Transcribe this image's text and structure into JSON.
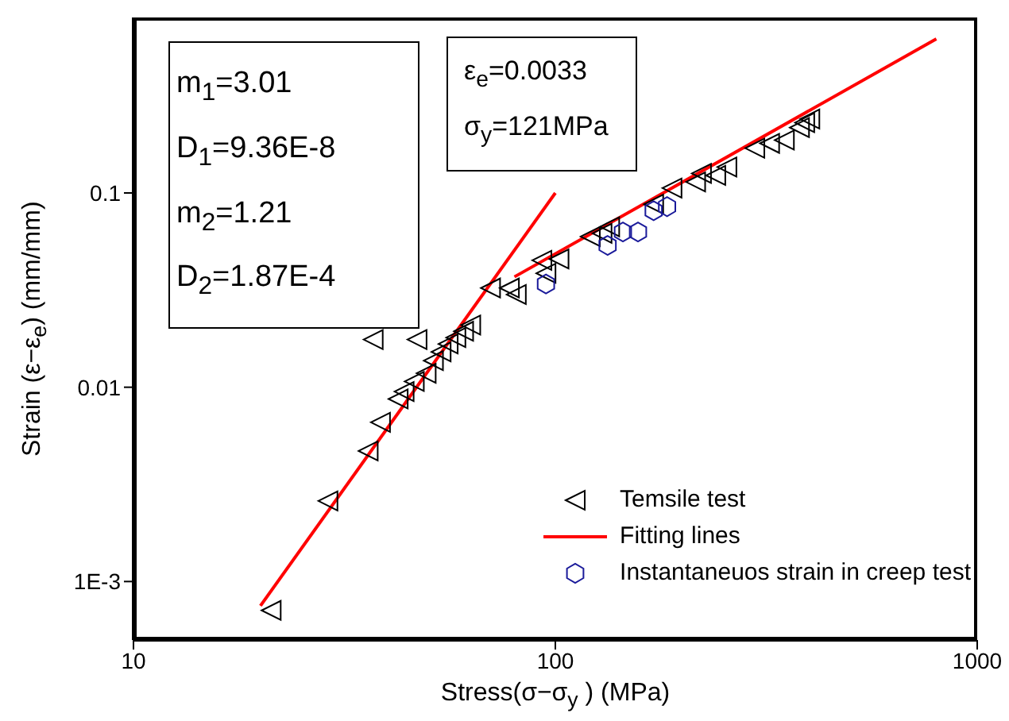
{
  "chart_data": {
    "type": "scatter",
    "xlabel": "Stress(σ−σ$_{y}$ ) (MPa)",
    "ylabel": "Strain (ε−ε$_{e}$) (mm/mm)",
    "log": "xy",
    "xlim": [
      10,
      1000
    ],
    "xticks": [
      10,
      100,
      1000
    ],
    "ylim": [
      0.0005,
      0.8
    ],
    "yticks": [
      {
        "value": 0.001,
        "label": "1E-3"
      },
      0.01,
      0.1
    ],
    "legend": "bottom right",
    "annotations": [
      "m$_{1}$=3.01",
      "D$_{1}$=9.36E-8",
      "m$_{2}$=1.21",
      "D$_{2}$=1.87E-4",
      "ε$_{e}$=0.0033",
      "σ$_{y}$=121MPa"
    ],
    "series": [
      {
        "name": "Temsile test",
        "marker": "triangle",
        "color": "#000000",
        "x": [
          21.2,
          28.9,
          36,
          38.5,
          37,
          47,
          42.4,
          43.8,
          46.3,
          49.4,
          51.4,
          53.6,
          55.7,
          58.1,
          60.6,
          63,
          70.2,
          77.8,
          80.8,
          92.9,
          95,
          102,
          121,
          129,
          134.5,
          171,
          189,
          215,
          222,
          240,
          255,
          297,
          322,
          349,
          379,
          390,
          401
        ],
        "values": [
          0.00071,
          0.0026,
          0.0047,
          0.0066,
          0.0176,
          0.0176,
          0.0087,
          0.0095,
          0.0107,
          0.0118,
          0.0137,
          0.0152,
          0.0167,
          0.018,
          0.0194,
          0.0209,
          0.0324,
          0.0324,
          0.03,
          0.045,
          0.0386,
          0.0457,
          0.0596,
          0.062,
          0.067,
          0.0875,
          0.106,
          0.114,
          0.126,
          0.123,
          0.136,
          0.17,
          0.18,
          0.187,
          0.217,
          0.23,
          0.24
        ]
      },
      {
        "name": "Fitting lines",
        "type": "line",
        "color": "#ff0000",
        "marker": "none",
        "x": [
          20,
          100
        ],
        "values": [
          0.00075,
          0.1
        ]
      },
      {
        "type": "line",
        "color": "#ff0000",
        "marker": "none",
        "x": [
          80,
          800
        ],
        "values": [
          0.037,
          0.62
        ]
      },
      {
        "name": "Instantaneuos strain in creep test",
        "color": "#1a1a9a",
        "x": [
          95,
          133,
          144.6,
          157,
          171,
          184
        ],
        "values": [
          0.034,
          0.0537,
          0.063,
          0.063,
          0.081,
          0.085
        ]
      }
    ]
  }
}
